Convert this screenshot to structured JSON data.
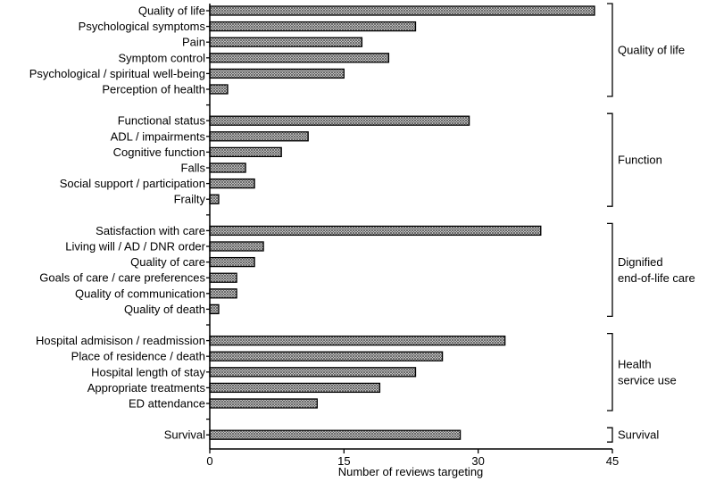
{
  "chart_data": {
    "type": "bar",
    "orientation": "horizontal",
    "xlabel": "Number of reviews targeting",
    "ylabel": "",
    "xlim": [
      0,
      45
    ],
    "xticks": [
      "0",
      "15",
      "30",
      "45"
    ],
    "grid": false,
    "bar_fill": "crosshatch",
    "groups": [
      {
        "label_lines": [
          "Quality of life"
        ],
        "categories": [
          "Quality of life",
          "Psychological symptoms",
          "Pain",
          "Symptom control",
          "Psychological / spiritual well-being",
          "Perception of health"
        ],
        "values": [
          43,
          23,
          17,
          20,
          15,
          2
        ]
      },
      {
        "label_lines": [
          "Function"
        ],
        "categories": [
          "Functional status",
          "ADL / impairments",
          "Cognitive function",
          "Falls",
          "Social support / participation",
          "Frailty"
        ],
        "values": [
          29,
          11,
          8,
          4,
          5,
          1
        ]
      },
      {
        "label_lines": [
          "Dignified",
          "end-of-life care"
        ],
        "categories": [
          "Satisfaction with care",
          "Living will / AD / DNR order",
          "Quality of care",
          "Goals of care / care preferences",
          "Quality of communication",
          "Quality of death"
        ],
        "values": [
          37,
          6,
          5,
          3,
          3,
          1
        ]
      },
      {
        "label_lines": [
          "Health",
          "service use"
        ],
        "categories": [
          "Hospital admisison / readmission",
          "Place of residence / death",
          "Hospital length of stay",
          "Appropriate treatments",
          "ED attendance"
        ],
        "values": [
          33,
          26,
          23,
          19,
          12
        ]
      },
      {
        "label_lines": [
          "Survival"
        ],
        "categories": [
          "Survival"
        ],
        "values": [
          28
        ]
      }
    ]
  }
}
